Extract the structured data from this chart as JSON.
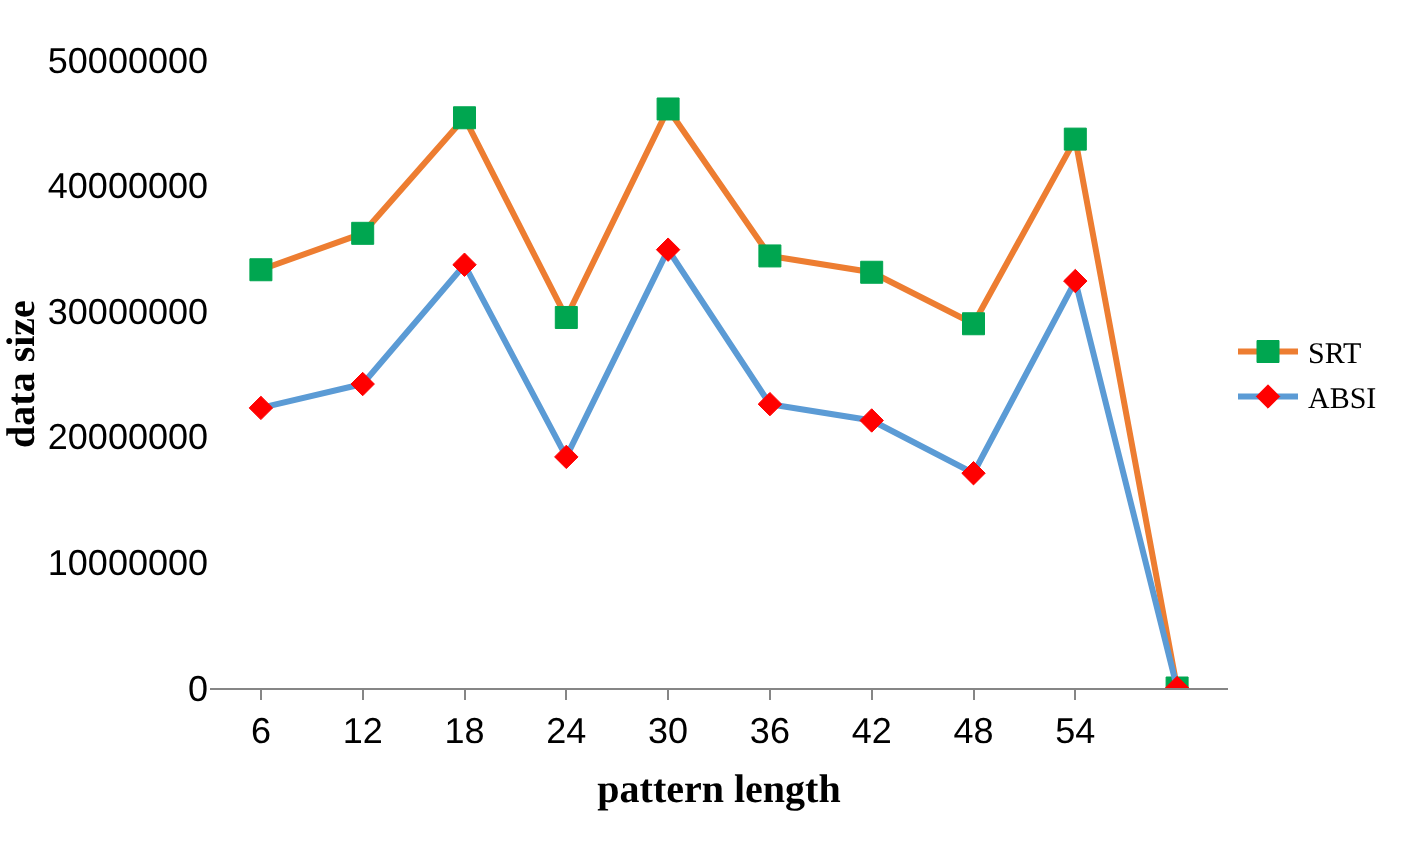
{
  "chart_data": {
    "type": "line",
    "xlabel": "pattern length",
    "ylabel": "data size",
    "categories": [
      "6",
      "12",
      "18",
      "24",
      "30",
      "36",
      "42",
      "48",
      "54",
      null
    ],
    "series": [
      {
        "name": "SRT",
        "color": "#ed7d31",
        "values": [
          33300000,
          36200000,
          45400000,
          29500000,
          46100000,
          34400000,
          33100000,
          29000000,
          43700000,
          0
        ],
        "marker": "square",
        "colors": [
          "#00a650",
          "#00a650",
          "#00a650",
          "#00a650",
          "#00a650",
          "#00a650",
          "#00a650",
          "#00a650",
          "#00a650",
          "#00a650"
        ]
      },
      {
        "name": "ABSI",
        "color": "#5b9bd5",
        "values": [
          22300000,
          24200000,
          33700000,
          18400000,
          34900000,
          22600000,
          21300000,
          17100000,
          32400000,
          0
        ],
        "marker": "diamond",
        "colors": [
          "#ff0000",
          "#ff0000",
          "#ff0000",
          "#ff0000",
          "#ff0000",
          "#ff0000",
          "#ff0000",
          "#ff0000",
          "#ff0000",
          "#ff0000"
        ]
      }
    ],
    "ylim": [
      0,
      50000000
    ],
    "yticks": [
      0,
      10000000,
      20000000,
      30000000,
      40000000,
      50000000
    ],
    "grid": false,
    "legend": "right",
    "line_style": "solid"
  }
}
